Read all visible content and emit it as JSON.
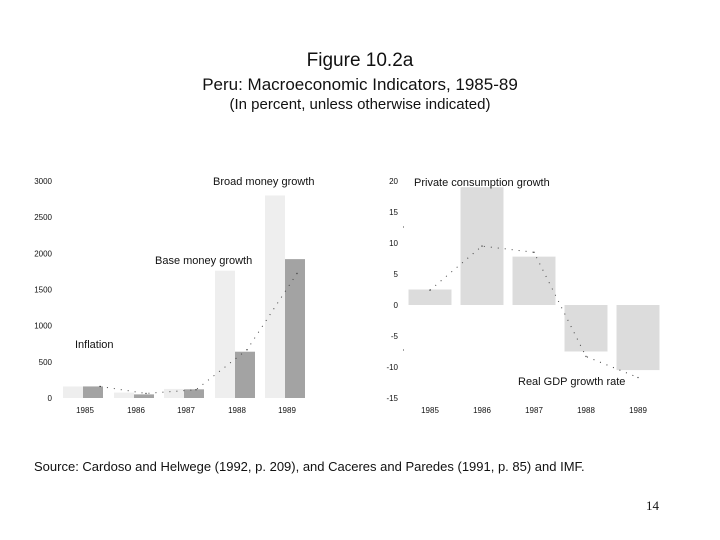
{
  "figure": {
    "title": "Figure 10.2a",
    "subtitle": "Peru: Macroeconomic Indicators, 1985-89",
    "note": "(In percent, unless otherwise indicated)"
  },
  "source": "Source: Cardoso and Helwege (1992, p. 209), and Caceres and Paredes (1991, p. 85) and IMF.",
  "page_number": "14",
  "colors": {
    "light_bar": "#eeeeee",
    "dark_bar": "#a3a3a3",
    "medium_bar": "#dcdcdc",
    "dots": "#444444"
  },
  "chart_data": [
    {
      "type": "bar",
      "title": "",
      "categories": [
        "1985",
        "1986",
        "1987",
        "1988",
        "1989"
      ],
      "ylim": [
        0,
        3000
      ],
      "yticks": [
        0,
        500,
        1000,
        1500,
        2000,
        2500,
        3000
      ],
      "ytick_labels": [
        "0",
        "500",
        "1000",
        "1500",
        "2000",
        "2500",
        "3000"
      ],
      "series": [
        {
          "name": "Broad money growth",
          "style": "light",
          "values": [
            160,
            75,
            125,
            1760,
            2800
          ]
        },
        {
          "name": "Base money growth",
          "style": "dark",
          "values": [
            160,
            50,
            120,
            640,
            1920
          ]
        },
        {
          "name": "Inflation",
          "style": "dotted-line",
          "values": [
            160,
            63,
            114,
            667,
            1722
          ]
        }
      ],
      "annotations": [
        "Broad money growth",
        "Base money growth",
        "Inflation"
      ]
    },
    {
      "type": "bar",
      "title": "",
      "categories": [
        "1985",
        "1986",
        "1987",
        "1988",
        "1989"
      ],
      "ylim": [
        -15,
        20
      ],
      "yticks": [
        -15,
        -10,
        -5,
        0,
        5,
        10,
        15,
        20
      ],
      "ytick_labels": [
        "-15",
        "-10",
        "-5",
        "0",
        "5",
        "10",
        "15",
        "20"
      ],
      "series": [
        {
          "name": "Private consumption growth",
          "style": "medium",
          "values": [
            2.5,
            19,
            7.8,
            -7.5,
            -10.5
          ]
        },
        {
          "name": "Real GDP growth rate",
          "style": "dotted-line",
          "values": [
            2.4,
            9.5,
            8.5,
            -8.3,
            -11.7
          ]
        }
      ],
      "annotations": [
        "Private consumption growth",
        "Real GDP growth rate"
      ]
    }
  ]
}
